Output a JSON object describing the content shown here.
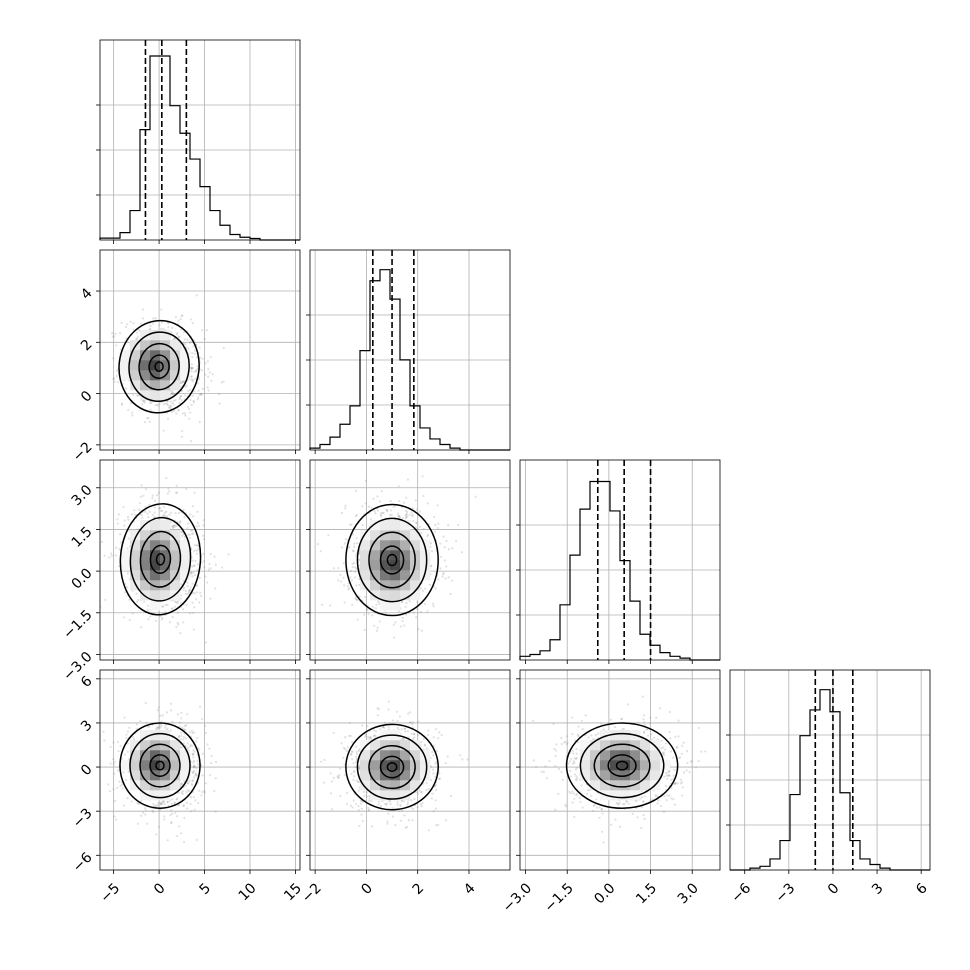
{
  "chart_data": {
    "type": "corner",
    "n_params": 4,
    "grid": true,
    "axes": [
      {
        "min": -6.5,
        "max": 15.5,
        "ticks": [
          -5,
          0,
          5,
          10,
          15
        ],
        "tick_labels": [
          "−5",
          "0",
          "5",
          "10",
          "15"
        ]
      },
      {
        "min": -2.2,
        "max": 5.6,
        "ticks": [
          -2,
          0,
          2,
          4
        ],
        "tick_labels": [
          "−2",
          "0",
          "2",
          "4"
        ]
      },
      {
        "min": -3.2,
        "max": 4.0,
        "ticks": [
          -3.0,
          -1.5,
          0.0,
          1.5,
          3.0
        ],
        "tick_labels": [
          "−3.0",
          "−1.5",
          "0.0",
          "1.5",
          "3.0"
        ]
      },
      {
        "min": -7.0,
        "max": 6.6,
        "ticks": [
          -6,
          -3,
          0,
          3,
          6
        ],
        "tick_labels": [
          "−6",
          "−3",
          "0",
          "3",
          "6"
        ]
      }
    ],
    "histograms": [
      {
        "edges_min": -6.5,
        "edges_max": 15.5,
        "counts": [
          0.01,
          0.01,
          0.04,
          0.16,
          0.6,
          1.0,
          1.0,
          0.73,
          0.58,
          0.44,
          0.29,
          0.16,
          0.08,
          0.03,
          0.015,
          0.008,
          0.0,
          0.0,
          0.0,
          0.0
        ],
        "quantiles": [
          -1.5,
          0.3,
          3.0
        ]
      },
      {
        "edges_min": -2.2,
        "edges_max": 5.6,
        "counts": [
          0.01,
          0.03,
          0.07,
          0.14,
          0.24,
          0.54,
          0.92,
          0.98,
          0.82,
          0.49,
          0.24,
          0.12,
          0.06,
          0.03,
          0.01,
          0.0,
          0.0,
          0.0,
          0.0,
          0.0
        ],
        "quantiles": [
          0.25,
          1.0,
          1.85
        ]
      },
      {
        "edges_min": -3.2,
        "edges_max": 4.0,
        "counts": [
          0.02,
          0.03,
          0.05,
          0.11,
          0.3,
          0.57,
          0.82,
          0.97,
          0.97,
          0.81,
          0.54,
          0.32,
          0.14,
          0.08,
          0.04,
          0.02,
          0.01,
          0.0,
          0.0,
          0.0
        ],
        "quantiles": [
          -0.4,
          0.55,
          1.5
        ]
      },
      {
        "edges_min": -7.0,
        "edges_max": 6.6,
        "counts": [
          0.0,
          0.0,
          0.01,
          0.02,
          0.06,
          0.16,
          0.41,
          0.73,
          0.87,
          0.98,
          0.86,
          0.42,
          0.16,
          0.06,
          0.03,
          0.01,
          0.0,
          0.0,
          0.0,
          0.0
        ],
        "quantiles": [
          -1.2,
          0.0,
          1.35
        ]
      }
    ],
    "pairs": [
      {
        "x": 0,
        "y": 1,
        "mean": [
          0.5,
          1.0
        ],
        "std": [
          2.2,
          0.9
        ],
        "rho": -0.15,
        "peak": [
          -0.5,
          1.1
        ]
      },
      {
        "x": 0,
        "y": 2,
        "mean": [
          0.6,
          0.5
        ],
        "std": [
          2.2,
          1.0
        ],
        "rho": -0.1,
        "peak": [
          -0.3,
          0.35
        ]
      },
      {
        "x": 1,
        "y": 2,
        "mean": [
          1.0,
          0.5
        ],
        "std": [
          0.9,
          1.0
        ],
        "rho": 0.0,
        "peak": [
          1.0,
          0.3
        ]
      },
      {
        "x": 0,
        "y": 3,
        "mean": [
          0.5,
          0.0
        ],
        "std": [
          2.2,
          1.45
        ],
        "rho": 0.0,
        "peak": [
          -0.3,
          0.2
        ]
      },
      {
        "x": 1,
        "y": 3,
        "mean": [
          1.0,
          0.0
        ],
        "std": [
          0.9,
          1.45
        ],
        "rho": 0.0,
        "peak": [
          1.0,
          0.0
        ]
      },
      {
        "x": 2,
        "y": 3,
        "mean": [
          0.5,
          0.0
        ],
        "std": [
          1.0,
          1.45
        ],
        "rho": 0.0,
        "peak": [
          0.45,
          0.2
        ]
      }
    ],
    "colors": {
      "line": "#000000",
      "points": "#888888",
      "grid": "#b0b0b0",
      "density_dark": "#404040"
    }
  }
}
